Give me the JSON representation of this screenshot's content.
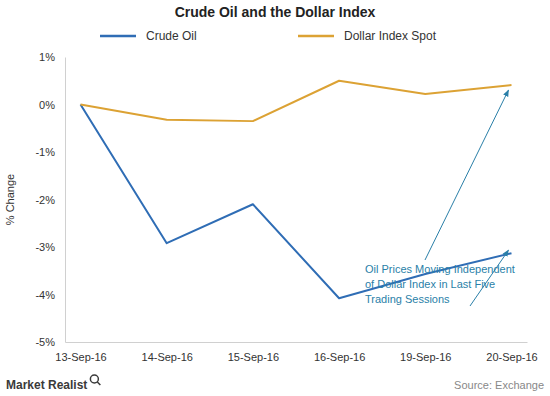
{
  "chart_data": {
    "type": "line",
    "title": "Crude Oil and the Dollar Index",
    "y_label": "% Change",
    "categories": [
      "13-Sep-16",
      "14-Sep-16",
      "15-Sep-16",
      "16-Sep-16",
      "19-Sep-16",
      "20-Sep-16"
    ],
    "series": [
      {
        "name": "Crude Oil",
        "color": "#2f6db5",
        "values": [
          0,
          -2.92,
          -2.1,
          -4.08,
          -3.57,
          -3.13
        ]
      },
      {
        "name": "Dollar Index Spot",
        "color": "#dca234",
        "values": [
          0,
          -0.32,
          -0.35,
          0.5,
          0.22,
          0.41
        ]
      }
    ],
    "ylim": [
      -5,
      1
    ],
    "yticks": [
      {
        "value": 1,
        "label": "1%"
      },
      {
        "value": 0,
        "label": "0%"
      },
      {
        "value": -1,
        "label": "-1%"
      },
      {
        "value": -2,
        "label": "-2%"
      },
      {
        "value": -3,
        "label": "-3%"
      },
      {
        "value": -4,
        "label": "-4%"
      },
      {
        "value": -5,
        "label": "-5%"
      }
    ],
    "grid": false,
    "legend": "top",
    "annotation": [
      "Oil Prices Moving Independent",
      "of Dollar Index in Last Five",
      "Trading Sessions"
    ],
    "logo": "Market Realist",
    "source": "Source: Exchange"
  }
}
